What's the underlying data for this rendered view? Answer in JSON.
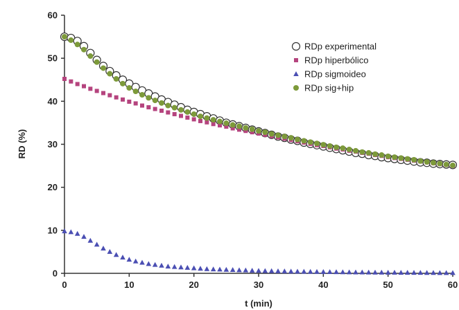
{
  "chart_data": {
    "type": "scatter",
    "title": "",
    "xlabel": "t (min)",
    "ylabel": "RD (%)",
    "xlim": [
      0,
      60
    ],
    "ylim": [
      0,
      60
    ],
    "x_ticks": [
      0,
      10,
      20,
      30,
      40,
      50,
      60
    ],
    "y_ticks": [
      0,
      10,
      20,
      30,
      40,
      50,
      60
    ],
    "x_tick_labels": [
      "0",
      "10",
      "20",
      "30",
      "40",
      "50",
      "60"
    ],
    "y_tick_labels": [
      "0",
      "10",
      "20",
      "30",
      "40",
      "50",
      "60"
    ],
    "grid": false,
    "legend_position": "top-right",
    "series": [
      {
        "name": "RDp experimental",
        "marker": "open-circle",
        "color": "#333333",
        "x": [
          0,
          1,
          2,
          3,
          4,
          5,
          6,
          7,
          8,
          9,
          10,
          11,
          12,
          13,
          14,
          15,
          16,
          17,
          18,
          19,
          20,
          21,
          22,
          23,
          24,
          25,
          26,
          27,
          28,
          29,
          30,
          31,
          32,
          33,
          34,
          35,
          36,
          37,
          38,
          39,
          40,
          41,
          42,
          43,
          44,
          45,
          46,
          47,
          48,
          49,
          50,
          51,
          52,
          53,
          54,
          55,
          56,
          57,
          58,
          59,
          60
        ],
        "y": [
          55.0,
          54.7,
          54.0,
          52.8,
          51.2,
          49.6,
          48.2,
          47.0,
          46.0,
          45.0,
          44.1,
          43.3,
          42.5,
          41.8,
          41.1,
          40.4,
          39.8,
          39.2,
          38.6,
          38.0,
          37.5,
          37.0,
          36.5,
          36.0,
          35.5,
          35.0,
          34.6,
          34.2,
          33.8,
          33.4,
          33.0,
          32.6,
          32.2,
          31.8,
          31.5,
          31.1,
          30.8,
          30.4,
          30.1,
          29.8,
          29.5,
          29.2,
          28.9,
          28.6,
          28.3,
          28.0,
          27.8,
          27.5,
          27.3,
          27.0,
          26.8,
          26.6,
          26.4,
          26.2,
          26.0,
          25.8,
          25.7,
          25.5,
          25.4,
          25.3,
          25.2
        ]
      },
      {
        "name": "RDp hiperbólico",
        "marker": "square",
        "color": "#b5447e",
        "x": [
          0,
          1,
          2,
          3,
          4,
          5,
          6,
          7,
          8,
          9,
          10,
          11,
          12,
          13,
          14,
          15,
          16,
          17,
          18,
          19,
          20,
          21,
          22,
          23,
          24,
          25,
          26,
          27,
          28,
          29,
          30,
          31,
          32,
          33,
          34,
          35,
          36,
          37,
          38,
          39,
          40,
          41,
          42,
          43,
          44,
          45,
          46,
          47,
          48,
          49,
          50,
          51,
          52,
          53,
          54,
          55,
          56,
          57,
          58,
          59,
          60
        ],
        "y": [
          45.2,
          44.6,
          44.0,
          43.5,
          42.9,
          42.4,
          41.9,
          41.4,
          40.9,
          40.4,
          39.9,
          39.5,
          39.0,
          38.6,
          38.2,
          37.8,
          37.4,
          37.0,
          36.6,
          36.2,
          35.8,
          35.4,
          35.1,
          34.7,
          34.4,
          34.1,
          33.7,
          33.4,
          33.1,
          32.8,
          32.5,
          32.2,
          31.9,
          31.6,
          31.3,
          31.0,
          30.7,
          30.4,
          30.1,
          29.8,
          29.6,
          29.3,
          29.0,
          28.8,
          28.5,
          28.3,
          28.0,
          27.8,
          27.5,
          27.3,
          27.0,
          26.8,
          26.6,
          26.4,
          26.2,
          26.0,
          25.8,
          25.6,
          25.4,
          25.2,
          25.0
        ]
      },
      {
        "name": "RDp sigmoideo",
        "marker": "triangle",
        "color": "#4b4fb3",
        "x": [
          0,
          1,
          2,
          3,
          4,
          5,
          6,
          7,
          8,
          9,
          10,
          11,
          12,
          13,
          14,
          15,
          16,
          17,
          18,
          19,
          20,
          21,
          22,
          23,
          24,
          25,
          26,
          27,
          28,
          29,
          30,
          31,
          32,
          33,
          34,
          35,
          36,
          37,
          38,
          39,
          40,
          41,
          42,
          43,
          44,
          45,
          46,
          47,
          48,
          49,
          50,
          51,
          52,
          53,
          54,
          55,
          56,
          57,
          58,
          59,
          60
        ],
        "y": [
          9.8,
          9.6,
          9.2,
          8.5,
          7.6,
          6.7,
          5.8,
          5.0,
          4.3,
          3.7,
          3.2,
          2.8,
          2.5,
          2.2,
          2.0,
          1.8,
          1.6,
          1.5,
          1.4,
          1.3,
          1.2,
          1.1,
          1.0,
          0.95,
          0.9,
          0.85,
          0.8,
          0.75,
          0.7,
          0.65,
          0.6,
          0.57,
          0.54,
          0.51,
          0.48,
          0.45,
          0.42,
          0.4,
          0.38,
          0.36,
          0.34,
          0.32,
          0.3,
          0.28,
          0.26,
          0.25,
          0.24,
          0.22,
          0.21,
          0.2,
          0.19,
          0.18,
          0.17,
          0.16,
          0.15,
          0.14,
          0.13,
          0.12,
          0.11,
          0.1,
          0.1
        ]
      },
      {
        "name": "RDp sig+hip",
        "marker": "filled-circle",
        "color": "#7d9a3a",
        "x": [
          0,
          1,
          2,
          3,
          4,
          5,
          6,
          7,
          8,
          9,
          10,
          11,
          12,
          13,
          14,
          15,
          16,
          17,
          18,
          19,
          20,
          21,
          22,
          23,
          24,
          25,
          26,
          27,
          28,
          29,
          30,
          31,
          32,
          33,
          34,
          35,
          36,
          37,
          38,
          39,
          40,
          41,
          42,
          43,
          44,
          45,
          46,
          47,
          48,
          49,
          50,
          51,
          52,
          53,
          54,
          55,
          56,
          57,
          58,
          59,
          60
        ],
        "y": [
          55.0,
          54.2,
          53.2,
          52.0,
          50.5,
          49.1,
          47.7,
          46.4,
          45.2,
          44.1,
          43.1,
          42.3,
          41.5,
          40.8,
          40.2,
          39.6,
          39.0,
          38.5,
          38.0,
          37.5,
          37.0,
          36.5,
          36.1,
          35.7,
          35.3,
          34.9,
          34.5,
          34.2,
          33.8,
          33.5,
          33.1,
          32.8,
          32.4,
          32.1,
          31.8,
          31.5,
          31.1,
          30.8,
          30.5,
          30.2,
          29.9,
          29.6,
          29.3,
          29.1,
          28.8,
          28.5,
          28.2,
          28.0,
          27.7,
          27.5,
          27.2,
          27.0,
          26.8,
          26.6,
          26.4,
          26.1,
          25.9,
          25.7,
          25.5,
          25.3,
          25.1
        ]
      }
    ]
  }
}
